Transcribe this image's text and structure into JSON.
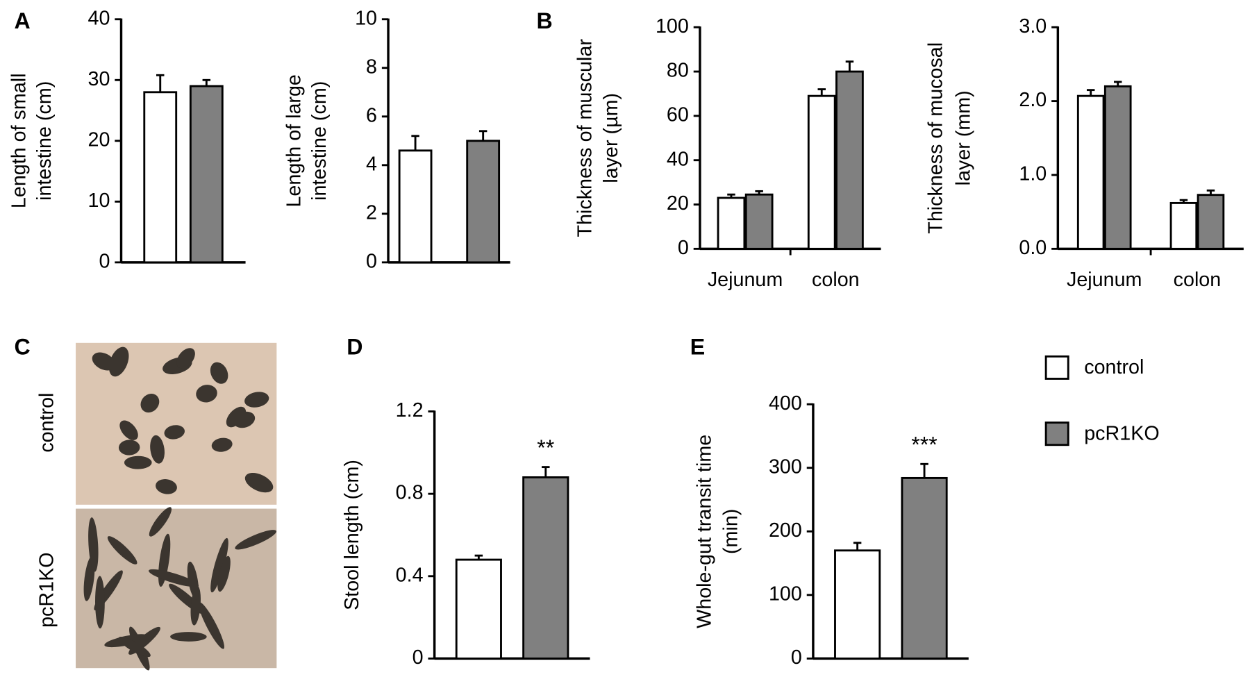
{
  "panels": [
    "A",
    "B",
    "C",
    "D",
    "E"
  ],
  "photo": {
    "labels": [
      "control",
      "pcR1KO"
    ]
  },
  "legend": {
    "series": [
      {
        "name": "control",
        "color": "#ffffff"
      },
      {
        "name": "pcR1KO",
        "color": "#808080"
      }
    ]
  },
  "chart_data": [
    {
      "type": "bar",
      "ylabel": [
        "Length of small",
        "intestine (cm)"
      ],
      "categories": [
        null
      ],
      "series": [
        {
          "values": [
            28
          ],
          "errors": [
            2.8
          ]
        },
        {
          "values": [
            29
          ],
          "errors": [
            1.0
          ]
        }
      ],
      "ylim": [
        0,
        40
      ],
      "yticks": [
        0,
        10,
        20,
        30,
        40
      ]
    },
    {
      "type": "bar",
      "ylabel": [
        "Length of large",
        "intestine (cm)"
      ],
      "categories": [
        null
      ],
      "series": [
        {
          "values": [
            4.6
          ],
          "errors": [
            0.6
          ]
        },
        {
          "values": [
            5.0
          ],
          "errors": [
            0.4
          ]
        }
      ],
      "ylim": [
        0,
        10
      ],
      "yticks": [
        0,
        2,
        4,
        6,
        8,
        10
      ]
    },
    {
      "type": "bar",
      "ylabel": [
        "Thickness of muscular",
        "layer (µm)"
      ],
      "categories": [
        "Jejunum",
        "colon"
      ],
      "series": [
        {
          "values": [
            23,
            69
          ],
          "errors": [
            1.5,
            3
          ]
        },
        {
          "values": [
            24.5,
            80
          ],
          "errors": [
            1.5,
            4.5
          ]
        }
      ],
      "ylim": [
        0,
        100
      ],
      "yticks": [
        0,
        20,
        40,
        60,
        80,
        100
      ]
    },
    {
      "type": "bar",
      "ylabel": [
        "Thickness of mucosal",
        "layer (mm)"
      ],
      "categories": [
        "Jejunum",
        "colon"
      ],
      "series": [
        {
          "values": [
            2.07,
            0.62
          ],
          "errors": [
            0.08,
            0.04
          ]
        },
        {
          "values": [
            2.2,
            0.73
          ],
          "errors": [
            0.06,
            0.06
          ]
        }
      ],
      "ylim": [
        0,
        3
      ],
      "yticks": [
        {
          "value": 0,
          "label": "0.0"
        },
        {
          "value": 1,
          "label": "1.0"
        },
        {
          "value": 2,
          "label": "2.0"
        },
        {
          "value": 3,
          "label": "3.0"
        }
      ]
    },
    {
      "type": "bar",
      "ylabel": [
        "Stool length (cm)"
      ],
      "categories": [
        null
      ],
      "series": [
        {
          "values": [
            0.48
          ],
          "errors": [
            0.02
          ]
        },
        {
          "values": [
            0.88
          ],
          "errors": [
            0.05
          ]
        }
      ],
      "significance": [
        "**"
      ],
      "ylim": [
        0,
        1.2
      ],
      "yticks": [
        0,
        0.4,
        0.8,
        1.2
      ]
    },
    {
      "type": "bar",
      "ylabel": [
        "Whole-gut transit time",
        "(min)"
      ],
      "categories": [
        null
      ],
      "series": [
        {
          "values": [
            170
          ],
          "errors": [
            12
          ]
        },
        {
          "values": [
            284
          ],
          "errors": [
            22
          ]
        }
      ],
      "significance": [
        "***"
      ],
      "ylim": [
        0,
        400
      ],
      "yticks": [
        0,
        100,
        200,
        300,
        400
      ]
    }
  ]
}
